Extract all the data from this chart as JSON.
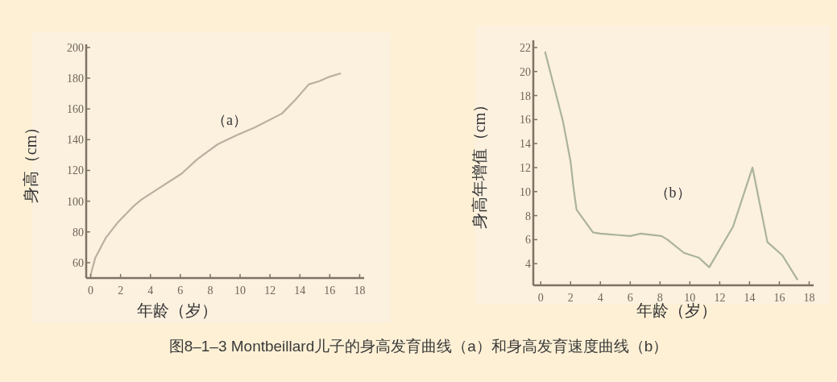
{
  "chart_data": [
    {
      "type": "line",
      "xlabel": "年龄（岁）",
      "ylabel": "身高（cm）",
      "annotations": [
        "（a）"
      ],
      "x": [
        0,
        0.3,
        1,
        1.8,
        2.9,
        3.4,
        4.5,
        6.1,
        7.1,
        8.5,
        9.8,
        11,
        12.8,
        13.7,
        14.6,
        15.3,
        16,
        16.7
      ],
      "series": [
        {
          "color": "#b8b0a0",
          "values": [
            52,
            63,
            76,
            86,
            97,
            101,
            108,
            118,
            127,
            137,
            143,
            148,
            157,
            166,
            176,
            178,
            181,
            183
          ]
        }
      ],
      "xlim": [
        -0.3,
        18.3
      ],
      "ylim": [
        50,
        202
      ],
      "xticks": [
        0,
        2,
        4,
        6,
        8,
        10,
        12,
        14,
        16,
        18
      ],
      "yticks": [
        60,
        80,
        100,
        120,
        140,
        160,
        180,
        200
      ]
    },
    {
      "type": "line",
      "xlabel": "年龄（岁）",
      "ylabel": "身高年增值（cm）",
      "annotations": [
        "（b）",
        "图8–1–3 Montbeillard儿子的身高发育曲线（a）和身高发育速度曲线（b）"
      ],
      "x": [
        0.3,
        1.5,
        2,
        2.2,
        2.4,
        3.5,
        4,
        6,
        6.7,
        8.1,
        8.5,
        9.6,
        10.6,
        11.3,
        12.9,
        14.2,
        15.2,
        16.2,
        17.2
      ],
      "series": [
        {
          "color": "#aab39c",
          "values": [
            21.6,
            15.8,
            12.5,
            10.3,
            8.5,
            6.6,
            6.5,
            6.3,
            6.5,
            6.3,
            6,
            4.9,
            4.5,
            3.7,
            7.1,
            12,
            5.8,
            4.7,
            2.7
          ]
        }
      ],
      "xlim": [
        -0.5,
        18.3
      ],
      "ylim": [
        2.2,
        22.6
      ],
      "xticks": [
        0,
        2,
        4,
        6,
        8,
        10,
        12,
        14,
        16,
        18
      ],
      "yticks": [
        4,
        6,
        8,
        10,
        12,
        14,
        16,
        18,
        20,
        22
      ]
    }
  ]
}
